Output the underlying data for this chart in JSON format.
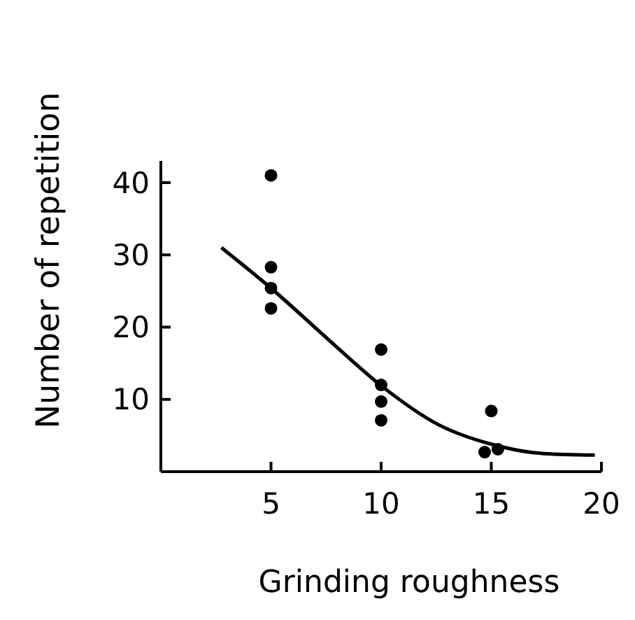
{
  "chart_data": {
    "type": "scatter",
    "xlabel": "Grinding roughness",
    "ylabel": "Number of repetition",
    "xlim": [
      0,
      20
    ],
    "ylim": [
      0,
      43
    ],
    "xticks": [
      5,
      10,
      15,
      20
    ],
    "yticks": [
      10,
      20,
      30,
      40
    ],
    "grid": false,
    "series": [
      {
        "color": "#000000",
        "marker": "circle",
        "x": [
          5,
          5,
          5,
          5,
          10,
          10,
          10,
          10,
          15,
          14.7,
          15.3
        ],
        "values": [
          41,
          28.3,
          25.4,
          22.6,
          16.9,
          12,
          9.7,
          7.1,
          8.4,
          2.7,
          3.1
        ]
      },
      {
        "type": "line",
        "color": "#000000",
        "marker": "none",
        "x": [
          2.75,
          5,
          7.6,
          10,
          12.6,
          15,
          17.4,
          19.7
        ],
        "values": [
          31,
          25.4,
          18.3,
          11.9,
          6.5,
          3.8,
          2.5,
          2.3
        ]
      }
    ]
  }
}
